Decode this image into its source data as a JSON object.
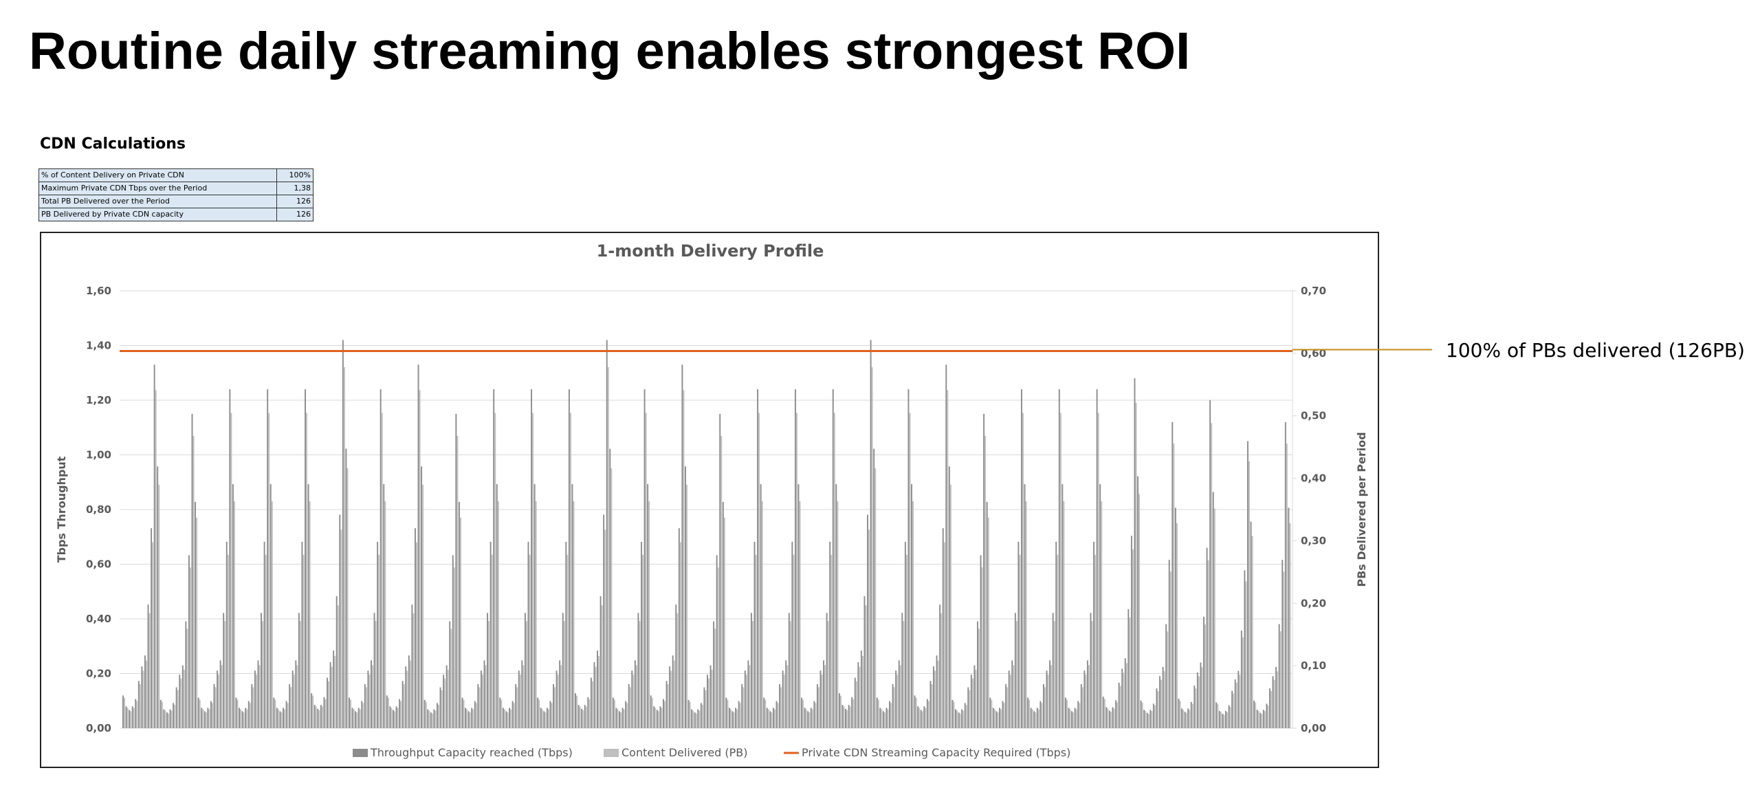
{
  "slide": {
    "title": "Routine daily streaming enables strongest ROI"
  },
  "calculations": {
    "heading": "CDN Calculations",
    "rows": [
      {
        "label": "% of Content Delivery on Private CDN",
        "value": "100%"
      },
      {
        "label": "Maximum Private CDN Tbps over the Period",
        "value": "1,38"
      },
      {
        "label": "Total PB Delivered over the Period",
        "value": "126"
      },
      {
        "label": "PB Delivered by Private CDN capacity",
        "value": "126"
      }
    ]
  },
  "callout": {
    "text": "100% of PBs delivered (126PB)",
    "color": "#c58a1a"
  },
  "chart_data": {
    "type": "bar",
    "title": "1-month Delivery Profile",
    "ylabel": "Tbps Throughput",
    "y2label": "PBs Delivered per Period",
    "ylim": [
      0,
      1.6
    ],
    "y2lim": [
      0,
      0.7
    ],
    "yticks": [
      "0,00",
      "0,20",
      "0,40",
      "0,60",
      "0,80",
      "1,00",
      "1,20",
      "1,40",
      "1,60"
    ],
    "y2ticks": [
      "0,00",
      "0,10",
      "0,20",
      "0,30",
      "0,40",
      "0,50",
      "0,60",
      "0,70"
    ],
    "grid": true,
    "legend_position": "bottom",
    "x": {
      "days": 31,
      "intervals_per_day": 12
    },
    "day_peaks": [
      1.33,
      1.15,
      1.24,
      1.24,
      1.24,
      1.42,
      1.24,
      1.33,
      1.15,
      1.24,
      1.24,
      1.24,
      1.42,
      1.24,
      1.33,
      1.15,
      1.24,
      1.24,
      1.24,
      1.42,
      1.24,
      1.33,
      1.15,
      1.24,
      1.24,
      1.24,
      1.28,
      1.12,
      1.2,
      1.05,
      1.12
    ],
    "daily_profile_fraction": [
      0.09,
      0.06,
      0.05,
      0.06,
      0.08,
      0.13,
      0.17,
      0.2,
      0.34,
      0.55,
      1.0,
      0.72
    ],
    "capacity_required": 1.38,
    "series": [
      {
        "name": "Throughput Capacity reached (Tbps)",
        "type": "bar",
        "color": "#8c8c8c"
      },
      {
        "name": "Content Delivered (PB)",
        "type": "bar",
        "color": "#bfbfbf"
      },
      {
        "name": "Private CDN Streaming Capacity Required (Tbps)",
        "type": "line",
        "color": "#e0611d"
      }
    ],
    "colors": {
      "grid": "#d9d9d9",
      "axis_text": "#595959",
      "title": "#595959"
    }
  }
}
